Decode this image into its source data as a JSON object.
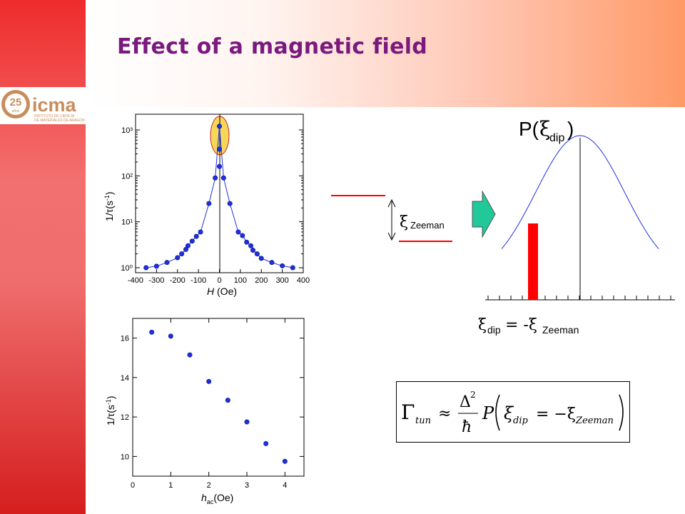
{
  "slide": {
    "title": "Effect of a magnetic field",
    "logo_text": "icma",
    "logo_sub1": "INSTITUTO DE CIENCIA",
    "logo_sub2": "DE MATERIALES DE ARAGON",
    "logo_badge": "25",
    "logo_badge_sub": "años"
  },
  "colors": {
    "title": "#7a1a7e",
    "left_bar": "#e83030",
    "header_gradient_end": "#ff9966",
    "points": "#1f2fe0",
    "highlight": "#f5d85a",
    "red_marker": "#ff0000",
    "arrow": "#20c89a"
  },
  "zeeman": {
    "symbol": "ξ",
    "subscript": "Zeeman"
  },
  "distribution": {
    "symbol": "P(",
    "xi": "ξ",
    "sub": "dip",
    "close": ")",
    "equation_left": "ξ",
    "equation_left_sub": "dip",
    "equation_mid": " = -ξ",
    "equation_right_sub": "Zeeman"
  },
  "formula": {
    "gamma": "Γ",
    "gamma_sub": "tun",
    "approx": "≈",
    "delta2": "Δ",
    "sq": "2",
    "hbar": "ħ",
    "P": "P",
    "xi": "ξ",
    "dip": "dip",
    "eq": "= −ξ",
    "zeeman": "Zeeman"
  },
  "chart_data": [
    {
      "type": "scatter",
      "xlabel": "H (Oe)",
      "ylabel": "1/τ(s⁻¹)",
      "xlim": [
        -400,
        400
      ],
      "ylim": [
        1,
        2000
      ],
      "yscale": "log",
      "x_ticks": [
        "-400",
        "-300",
        "-200",
        "-100",
        "0",
        "100",
        "200",
        "300",
        "400"
      ],
      "y_ticks": [
        "10⁰",
        "10¹",
        "10²",
        "10³"
      ],
      "highlight": "ellipse around peak at H = 0",
      "series": [
        {
          "x": [
            -350,
            -300,
            -250,
            -200,
            -180,
            -160,
            -150,
            -130,
            -110,
            -90,
            -50,
            -20,
            0,
            0,
            0,
            20,
            50,
            90,
            110,
            130,
            150,
            160,
            180,
            200,
            250,
            300,
            350
          ],
          "y": [
            1.0,
            1.08,
            1.3,
            1.65,
            2.0,
            2.5,
            3.0,
            3.8,
            4.8,
            6.0,
            25,
            90,
            1200,
            380,
            160,
            90,
            25,
            6.0,
            5.0,
            3.6,
            3.0,
            2.4,
            2.0,
            1.6,
            1.3,
            1.1,
            1.0
          ]
        }
      ]
    },
    {
      "type": "scatter",
      "xlabel": "h_ac(Oe)",
      "ylabel": "1/τ(s⁻¹)",
      "xlim": [
        0,
        4.5
      ],
      "ylim": [
        9,
        17
      ],
      "x_ticks": [
        "0",
        "1",
        "2",
        "3",
        "4"
      ],
      "y_ticks": [
        "10",
        "12",
        "14",
        "16"
      ],
      "series": [
        {
          "x": [
            0.5,
            1.0,
            1.5,
            2.0,
            2.5,
            3.0,
            3.5,
            4.0
          ],
          "y": [
            16.3,
            16.1,
            15.15,
            13.8,
            12.85,
            11.75,
            10.65,
            9.75
          ]
        }
      ]
    },
    {
      "type": "line",
      "xlabel": "",
      "ylabel": "",
      "curve": "gaussian",
      "marker": "red bar at ξ_dip = -ξ_Zeeman"
    }
  ]
}
